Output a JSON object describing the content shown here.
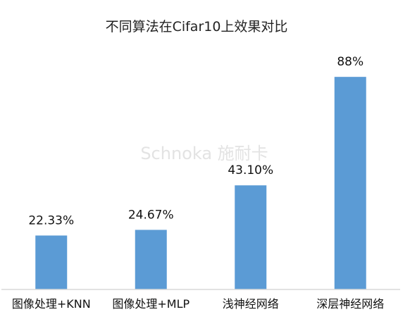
{
  "chart_data": {
    "type": "bar",
    "title": "不同算法在Cifar10上效果对比",
    "categories": [
      "图像处理+KNN",
      "图像处理+MLP",
      "浅神经网络",
      "深层神经网络"
    ],
    "values": [
      22.33,
      24.67,
      43.1,
      88
    ],
    "value_labels": [
      "22.33%",
      "24.67%",
      "43.10%",
      "88%"
    ],
    "unit": "%",
    "ylim": [
      0,
      100
    ],
    "grid": false,
    "legend": "none",
    "bar_color": "#5b9bd5",
    "baseline_color": "#d9d9d9"
  },
  "watermark": "Schnoka 施耐卡"
}
